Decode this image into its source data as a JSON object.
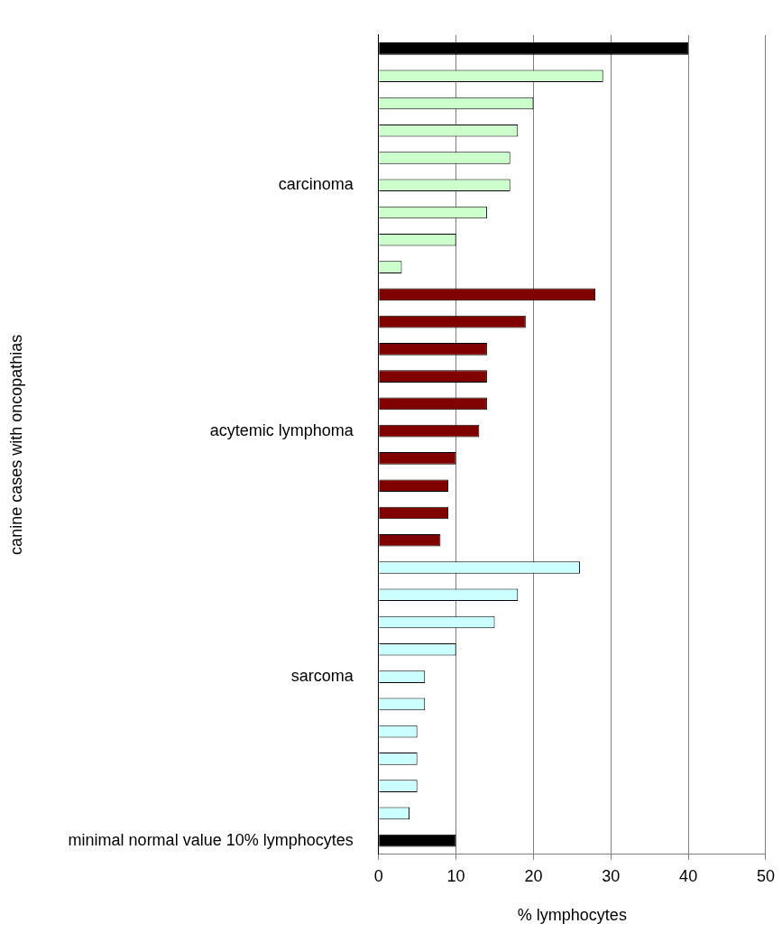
{
  "chart_data": {
    "type": "bar",
    "orientation": "horizontal",
    "xlabel": "% lymphocytes",
    "ylabel": "canine cases with oncopathias",
    "categories": [
      null,
      null,
      null,
      null,
      null,
      "carcinoma",
      null,
      null,
      null,
      null,
      null,
      null,
      null,
      null,
      "acytemic lymphoma",
      null,
      null,
      null,
      null,
      null,
      null,
      null,
      null,
      "sarcoma",
      null,
      null,
      null,
      null,
      null,
      "minimal normal value 10% lymphocytes"
    ],
    "values": [
      40,
      29,
      20,
      18,
      17,
      17,
      14,
      10,
      3,
      28,
      19,
      14,
      14,
      14,
      13,
      10,
      9,
      9,
      8,
      26,
      18,
      15,
      10,
      6,
      6,
      5,
      5,
      5,
      4,
      10
    ],
    "colors": [
      "#000000",
      "#ccffcc",
      "#ccffcc",
      "#ccffcc",
      "#ccffcc",
      "#ccffcc",
      "#ccffcc",
      "#ccffcc",
      "#ccffcc",
      "#800000",
      "#800000",
      "#800000",
      "#800000",
      "#800000",
      "#800000",
      "#800000",
      "#800000",
      "#800000",
      "#800000",
      "#ccffff",
      "#ccffff",
      "#ccffff",
      "#ccffff",
      "#ccffff",
      "#ccffff",
      "#ccffff",
      "#ccffff",
      "#ccffff",
      "#ccffff",
      "#000000"
    ],
    "xlim": [
      0,
      50
    ],
    "xticks": [
      0,
      10,
      20,
      30,
      40,
      50
    ],
    "grid": "x",
    "legend": false
  }
}
